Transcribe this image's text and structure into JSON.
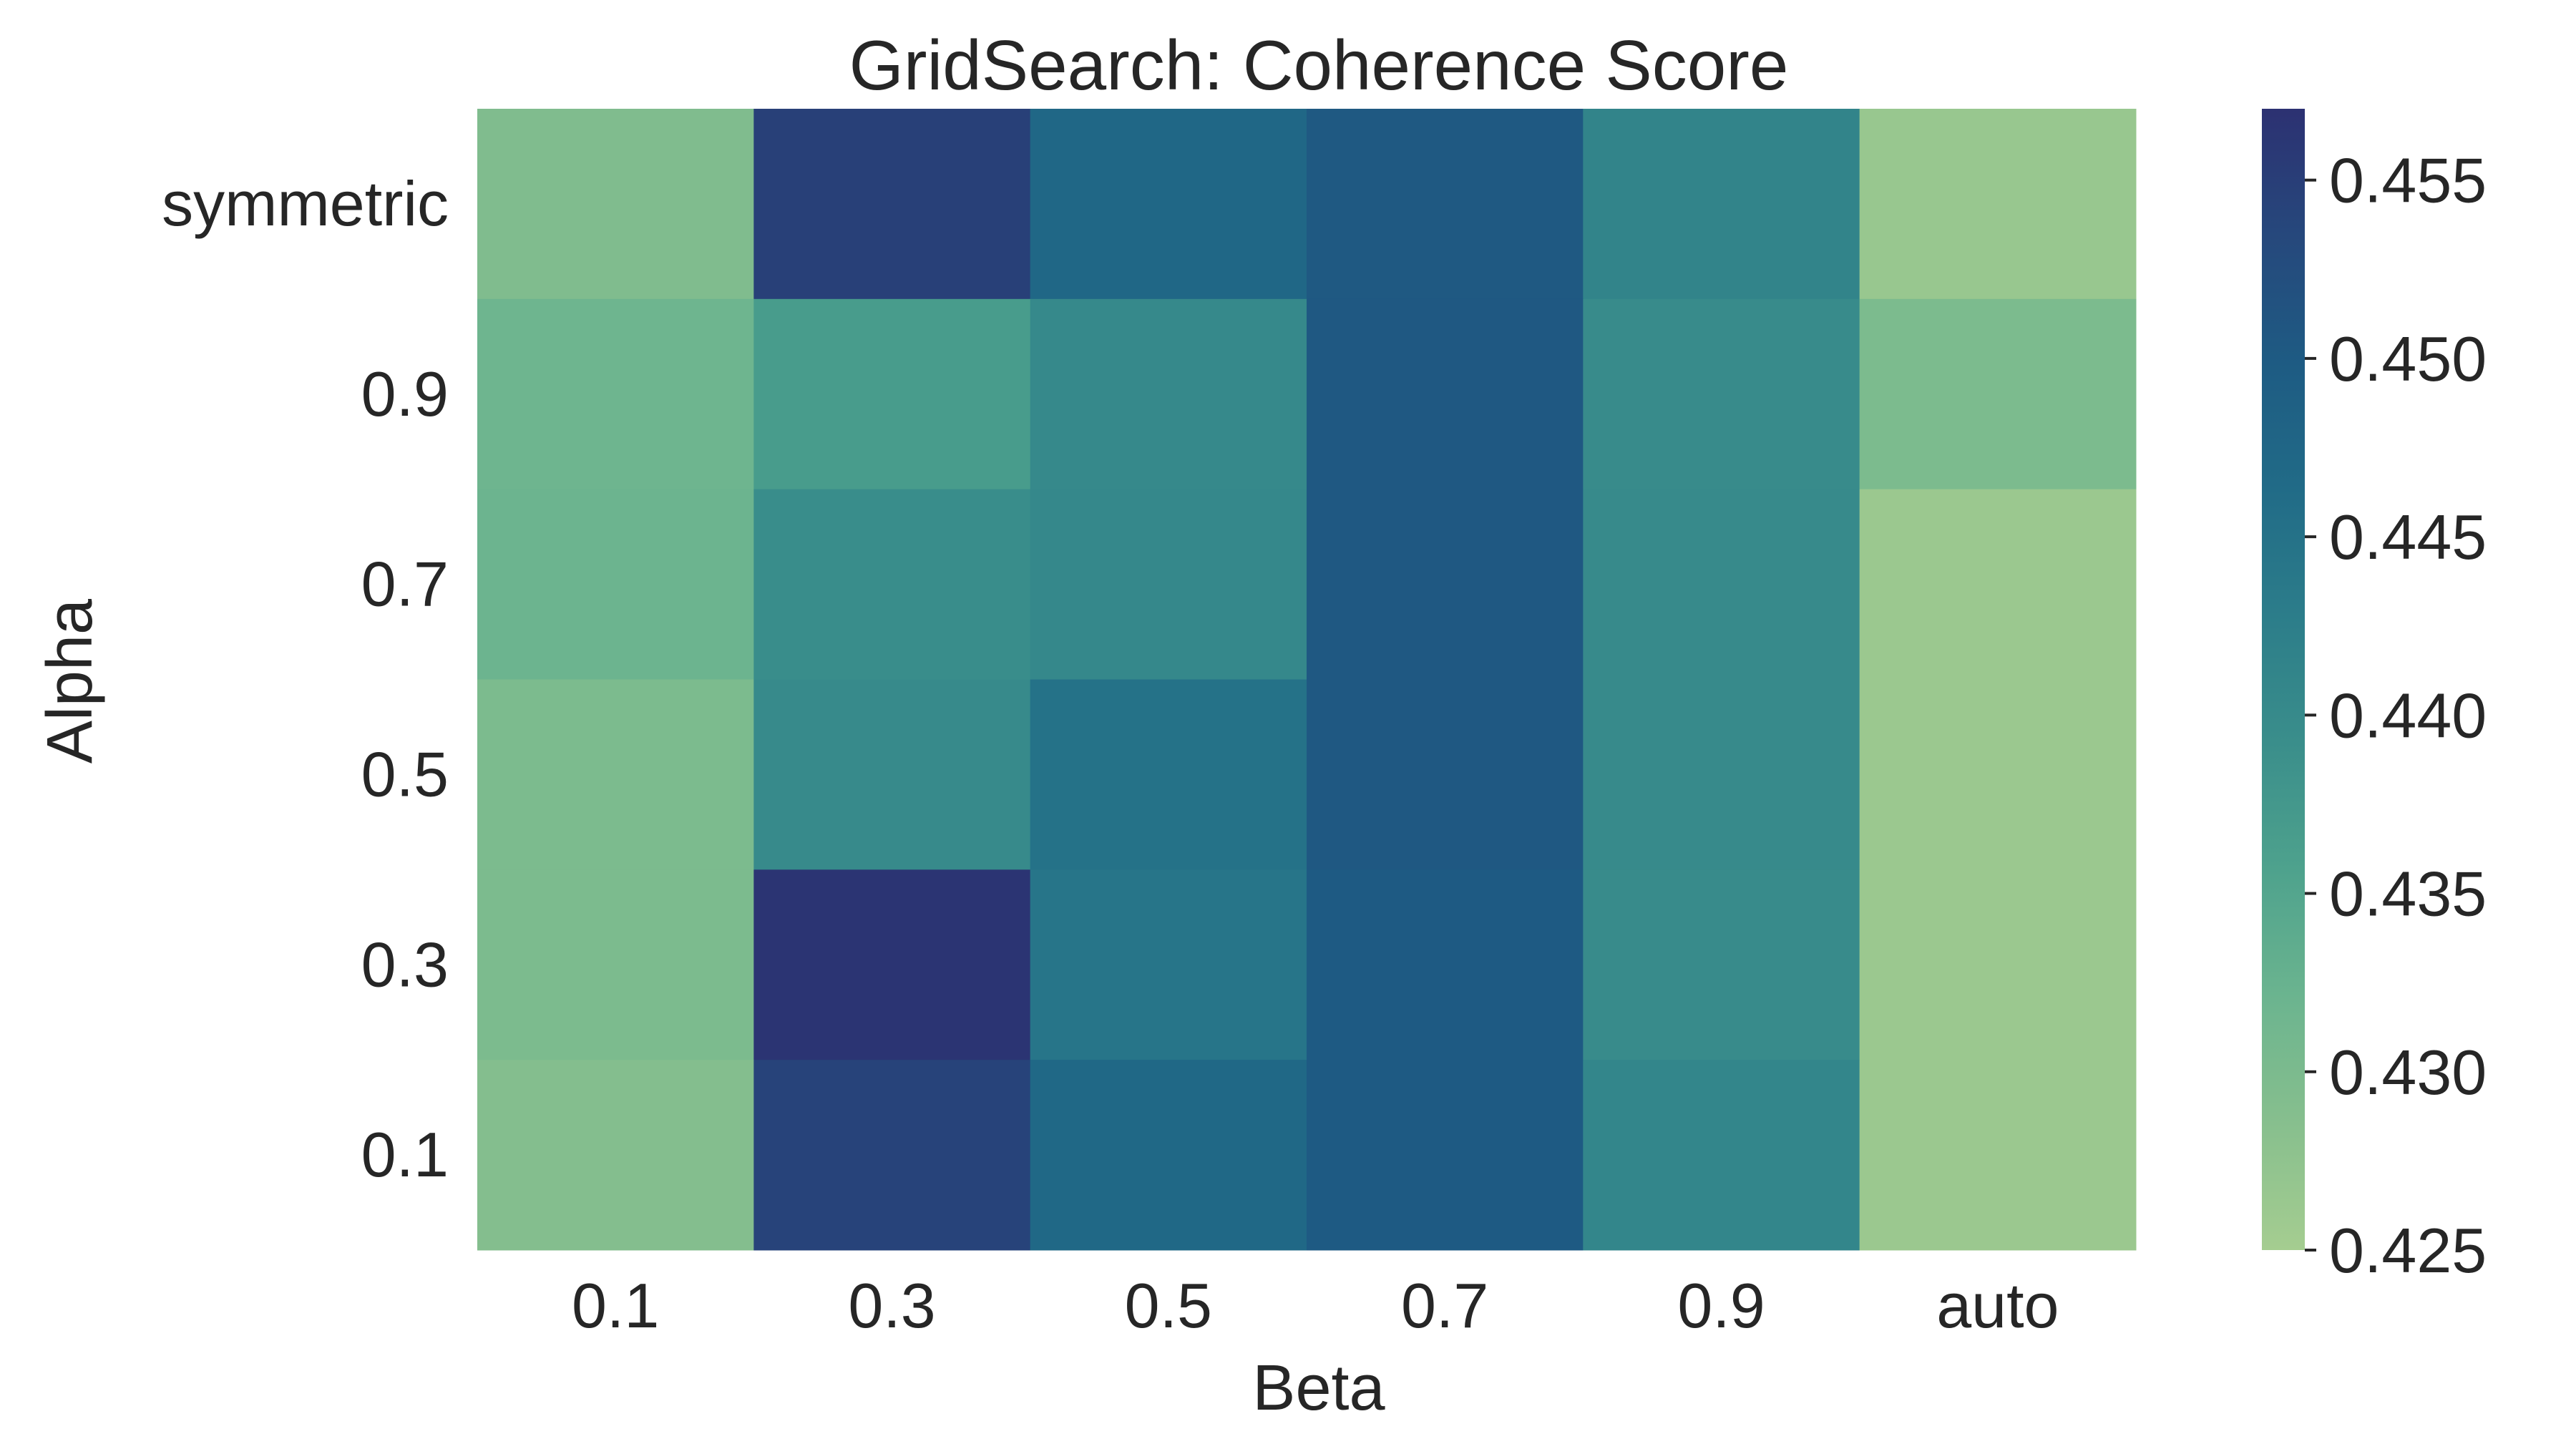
{
  "chart_data": {
    "type": "heatmap",
    "title": "GridSearch: Coherence Score",
    "xlabel": "Beta",
    "ylabel": "Alpha",
    "x_categories": [
      "0.1",
      "0.3",
      "0.5",
      "0.7",
      "0.9",
      "auto"
    ],
    "y_categories": [
      "symmetric",
      "0.9",
      "0.7",
      "0.5",
      "0.3",
      "0.1"
    ],
    "values": [
      [
        0.4295,
        0.4547,
        0.4472,
        0.4502,
        0.4413,
        0.4265
      ],
      [
        0.4317,
        0.4368,
        0.4403,
        0.4505,
        0.4398,
        0.43
      ],
      [
        0.432,
        0.4395,
        0.4405,
        0.4505,
        0.44,
        0.4262
      ],
      [
        0.43,
        0.44,
        0.445,
        0.4505,
        0.44,
        0.4262
      ],
      [
        0.43,
        0.4565,
        0.4443,
        0.45,
        0.4398,
        0.4262
      ],
      [
        0.429,
        0.4542,
        0.447,
        0.45,
        0.441,
        0.4262
      ]
    ],
    "colorbar": {
      "vmin": 0.425,
      "vmax": 0.457,
      "ticks": [
        "0.425",
        "0.430",
        "0.435",
        "0.440",
        "0.445",
        "0.450",
        "0.455"
      ],
      "tick_values": [
        0.425,
        0.43,
        0.435,
        0.44,
        0.445,
        0.45,
        0.455
      ]
    },
    "colormap": "crest",
    "colormap_stops": [
      "#a5cd90",
      "#87bf8e",
      "#6bb48f",
      "#4ea28d",
      "#3a8e8b",
      "#2c7d8a",
      "#216b87",
      "#1e5b83",
      "#26487c",
      "#2c3172"
    ],
    "grid": false
  }
}
